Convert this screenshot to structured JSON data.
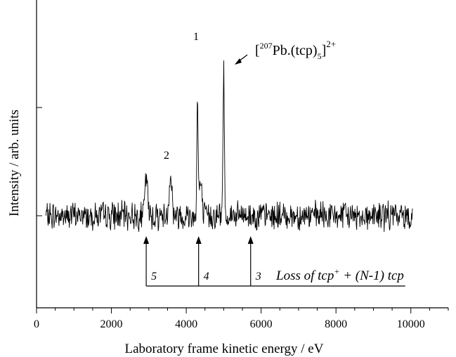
{
  "chart_data": {
    "type": "line",
    "title": "",
    "xlabel": "Laboratory frame kinetic energy / eV",
    "ylabel": "Intensity / arb. units",
    "xlim": [
      0,
      11000
    ],
    "xticks": [
      0,
      2000,
      4000,
      6000,
      8000,
      10000
    ],
    "xtick_labels": [
      "0",
      "2000",
      "4000",
      "6000",
      "8000",
      "10000"
    ],
    "minor_xtick_step": 500,
    "y_axis_values_shown": false,
    "grid": false,
    "series": [
      {
        "x_range": [
          250,
          10050
        ],
        "baseline": 1,
        "peaks": [
          {
            "x": 2930,
            "height": 4.5
          },
          {
            "x": 3580,
            "height": 5.0
          },
          {
            "x": 4300,
            "height": 13.0
          },
          {
            "x": 4380,
            "height": 3.8
          },
          {
            "x": 5000,
            "height": 17.0
          }
        ]
      }
    ],
    "peak_labels": [
      {
        "text": "1",
        "x": 4150
      },
      {
        "text": "2",
        "x": 3350
      }
    ],
    "ion_label": {
      "prefix": "[",
      "isotope": "207",
      "body": "Pb.(tcp)",
      "subscript": "5",
      "suffix": "]",
      "charge": "2+"
    },
    "loss_annotation": {
      "arrows": [
        {
          "x": 2930,
          "label": "5"
        },
        {
          "x": 4330,
          "label": "4"
        },
        {
          "x": 5720,
          "label": "3"
        }
      ],
      "bracket_range": [
        2930,
        9850
      ],
      "text_pre": "Loss of tcp",
      "text_sup": "+",
      "text_post": " + (N-1) tcp"
    }
  }
}
